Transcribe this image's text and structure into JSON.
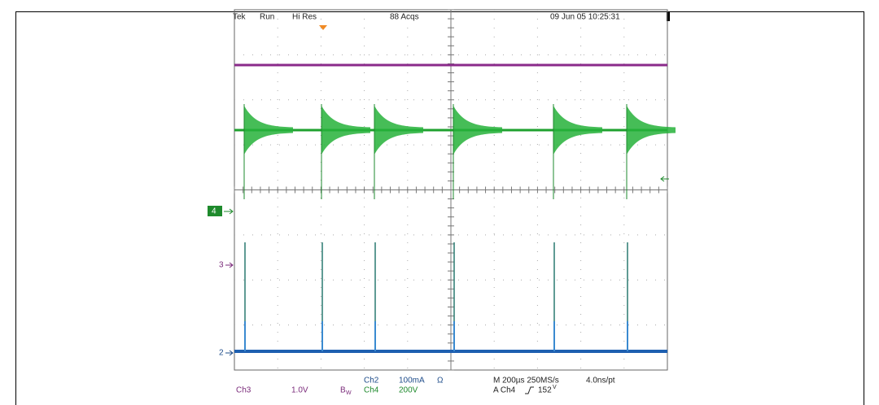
{
  "header": {
    "brand": "Tek",
    "mode": "Run",
    "acq_mode": "Hi Res",
    "acquisitions": "88 Acqs",
    "timestamp": "09 Jun 05 10:25:31"
  },
  "markers": {
    "ch4": "4",
    "ch3": "3",
    "ch2": "2"
  },
  "readout": {
    "ch3_label": "Ch3",
    "ch3_scale": "1.0V",
    "bw": "B",
    "bw_sub": "W",
    "ch2_label": "Ch2",
    "ch2_scale": "100mA",
    "ch2_unit": "Ω",
    "ch4_label": "Ch4",
    "ch4_scale": "200V",
    "timebase": "M 200µs 250MS/s",
    "resolution": "4.0ns/pt",
    "trigger_source": "A Ch4",
    "trigger_level": "152",
    "trigger_unit": "V"
  }
}
